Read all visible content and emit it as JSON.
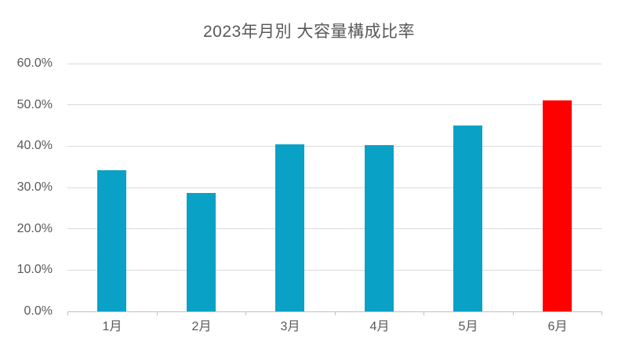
{
  "title": "2023年月別 大容量構成比率",
  "colors": {
    "bar_default": "#0aa1c7",
    "bar_highlight": "#ff0000",
    "gridline": "#d9d9d9",
    "axis_line": "#c0c0c0",
    "text": "#595959",
    "background": "#ffffff"
  },
  "chart_data": {
    "type": "bar",
    "title": "2023年月別 大容量構成比率",
    "categories": [
      "1月",
      "2月",
      "3月",
      "4月",
      "5月",
      "6月"
    ],
    "values": [
      34.2,
      28.7,
      40.4,
      40.2,
      45.0,
      51.0
    ],
    "series": [
      {
        "name": "大容量構成比率",
        "values": [
          34.2,
          28.7,
          40.4,
          40.2,
          45.0,
          51.0
        ]
      }
    ],
    "highlight_index": 5,
    "xlabel": "",
    "ylabel": "",
    "ylim": [
      0,
      60
    ],
    "ytick_step": 10,
    "ytick_labels": [
      "0.0%",
      "10.0%",
      "20.0%",
      "30.0%",
      "40.0%",
      "50.0%",
      "60.0%"
    ],
    "grid": true,
    "legend": false,
    "data_labels": false
  }
}
